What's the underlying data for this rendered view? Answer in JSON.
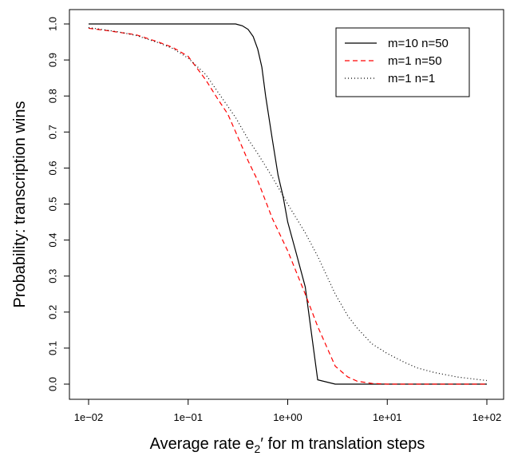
{
  "chart_data": {
    "type": "line",
    "xscale": "log",
    "xlim": [
      0.01,
      100
    ],
    "ylim": [
      0,
      1
    ],
    "grid": false,
    "legend_position": "top-right",
    "xlabel": {
      "prefix": "Average rate e",
      "subscript": "2",
      "suffix": "′ for m translation steps"
    },
    "ylabel": "Probability: transcription wins",
    "xticks": [
      {
        "value": 0.01,
        "label": "1e−02"
      },
      {
        "value": 0.1,
        "label": "1e−01"
      },
      {
        "value": 1,
        "label": "1e+00"
      },
      {
        "value": 10,
        "label": "1e+01"
      },
      {
        "value": 100,
        "label": "1e+02"
      }
    ],
    "yticks": [
      {
        "value": 0.0,
        "label": "0.0"
      },
      {
        "value": 0.1,
        "label": "0.1"
      },
      {
        "value": 0.2,
        "label": "0.2"
      },
      {
        "value": 0.3,
        "label": "0.3"
      },
      {
        "value": 0.4,
        "label": "0.4"
      },
      {
        "value": 0.5,
        "label": "0.5"
      },
      {
        "value": 0.6,
        "label": "0.6"
      },
      {
        "value": 0.7,
        "label": "0.7"
      },
      {
        "value": 0.8,
        "label": "0.8"
      },
      {
        "value": 0.9,
        "label": "0.9"
      },
      {
        "value": 1.0,
        "label": "1.0"
      }
    ],
    "series": [
      {
        "name": "m=10 n=50",
        "color": "#000000",
        "linestyle": "solid",
        "points": [
          [
            0.01,
            1.0
          ],
          [
            0.3,
            1.0
          ],
          [
            0.35,
            0.995
          ],
          [
            0.4,
            0.985
          ],
          [
            0.45,
            0.965
          ],
          [
            0.5,
            0.93
          ],
          [
            0.55,
            0.88
          ],
          [
            0.6,
            0.8
          ],
          [
            0.7,
            0.68
          ],
          [
            0.8,
            0.58
          ],
          [
            0.9,
            0.52
          ],
          [
            1.0,
            0.45
          ],
          [
            1.2,
            0.37
          ],
          [
            1.5,
            0.27
          ],
          [
            2.0,
            0.012
          ],
          [
            3.0,
            0.0
          ],
          [
            100,
            0.0
          ]
        ]
      },
      {
        "name": "m=1 n=50",
        "color": "#ff0000",
        "linestyle": "dashed",
        "points": [
          [
            0.01,
            0.988
          ],
          [
            0.015,
            0.982
          ],
          [
            0.02,
            0.977
          ],
          [
            0.03,
            0.97
          ],
          [
            0.05,
            0.95
          ],
          [
            0.07,
            0.935
          ],
          [
            0.1,
            0.91
          ],
          [
            0.15,
            0.845
          ],
          [
            0.2,
            0.79
          ],
          [
            0.25,
            0.75
          ],
          [
            0.3,
            0.7
          ],
          [
            0.4,
            0.62
          ],
          [
            0.5,
            0.565
          ],
          [
            0.7,
            0.46
          ],
          [
            1.0,
            0.37
          ],
          [
            1.5,
            0.25
          ],
          [
            2.0,
            0.16
          ],
          [
            3.0,
            0.05
          ],
          [
            4.0,
            0.02
          ],
          [
            5.0,
            0.008
          ],
          [
            7.0,
            0.002
          ],
          [
            10,
            0.0
          ],
          [
            100,
            0.0
          ]
        ]
      },
      {
        "name": "m=1 n=1",
        "color": "#000000",
        "linestyle": "dotted",
        "points": [
          [
            0.01,
            0.99
          ],
          [
            0.02,
            0.978
          ],
          [
            0.03,
            0.968
          ],
          [
            0.05,
            0.948
          ],
          [
            0.07,
            0.932
          ],
          [
            0.1,
            0.905
          ],
          [
            0.15,
            0.86
          ],
          [
            0.2,
            0.81
          ],
          [
            0.3,
            0.74
          ],
          [
            0.4,
            0.68
          ],
          [
            0.5,
            0.64
          ],
          [
            0.7,
            0.575
          ],
          [
            1.0,
            0.5
          ],
          [
            1.5,
            0.42
          ],
          [
            2.0,
            0.355
          ],
          [
            3.0,
            0.25
          ],
          [
            4.0,
            0.19
          ],
          [
            5.0,
            0.155
          ],
          [
            7.0,
            0.112
          ],
          [
            10,
            0.085
          ],
          [
            15,
            0.06
          ],
          [
            20,
            0.045
          ],
          [
            30,
            0.032
          ],
          [
            50,
            0.02
          ],
          [
            70,
            0.015
          ],
          [
            100,
            0.01
          ]
        ]
      }
    ]
  }
}
